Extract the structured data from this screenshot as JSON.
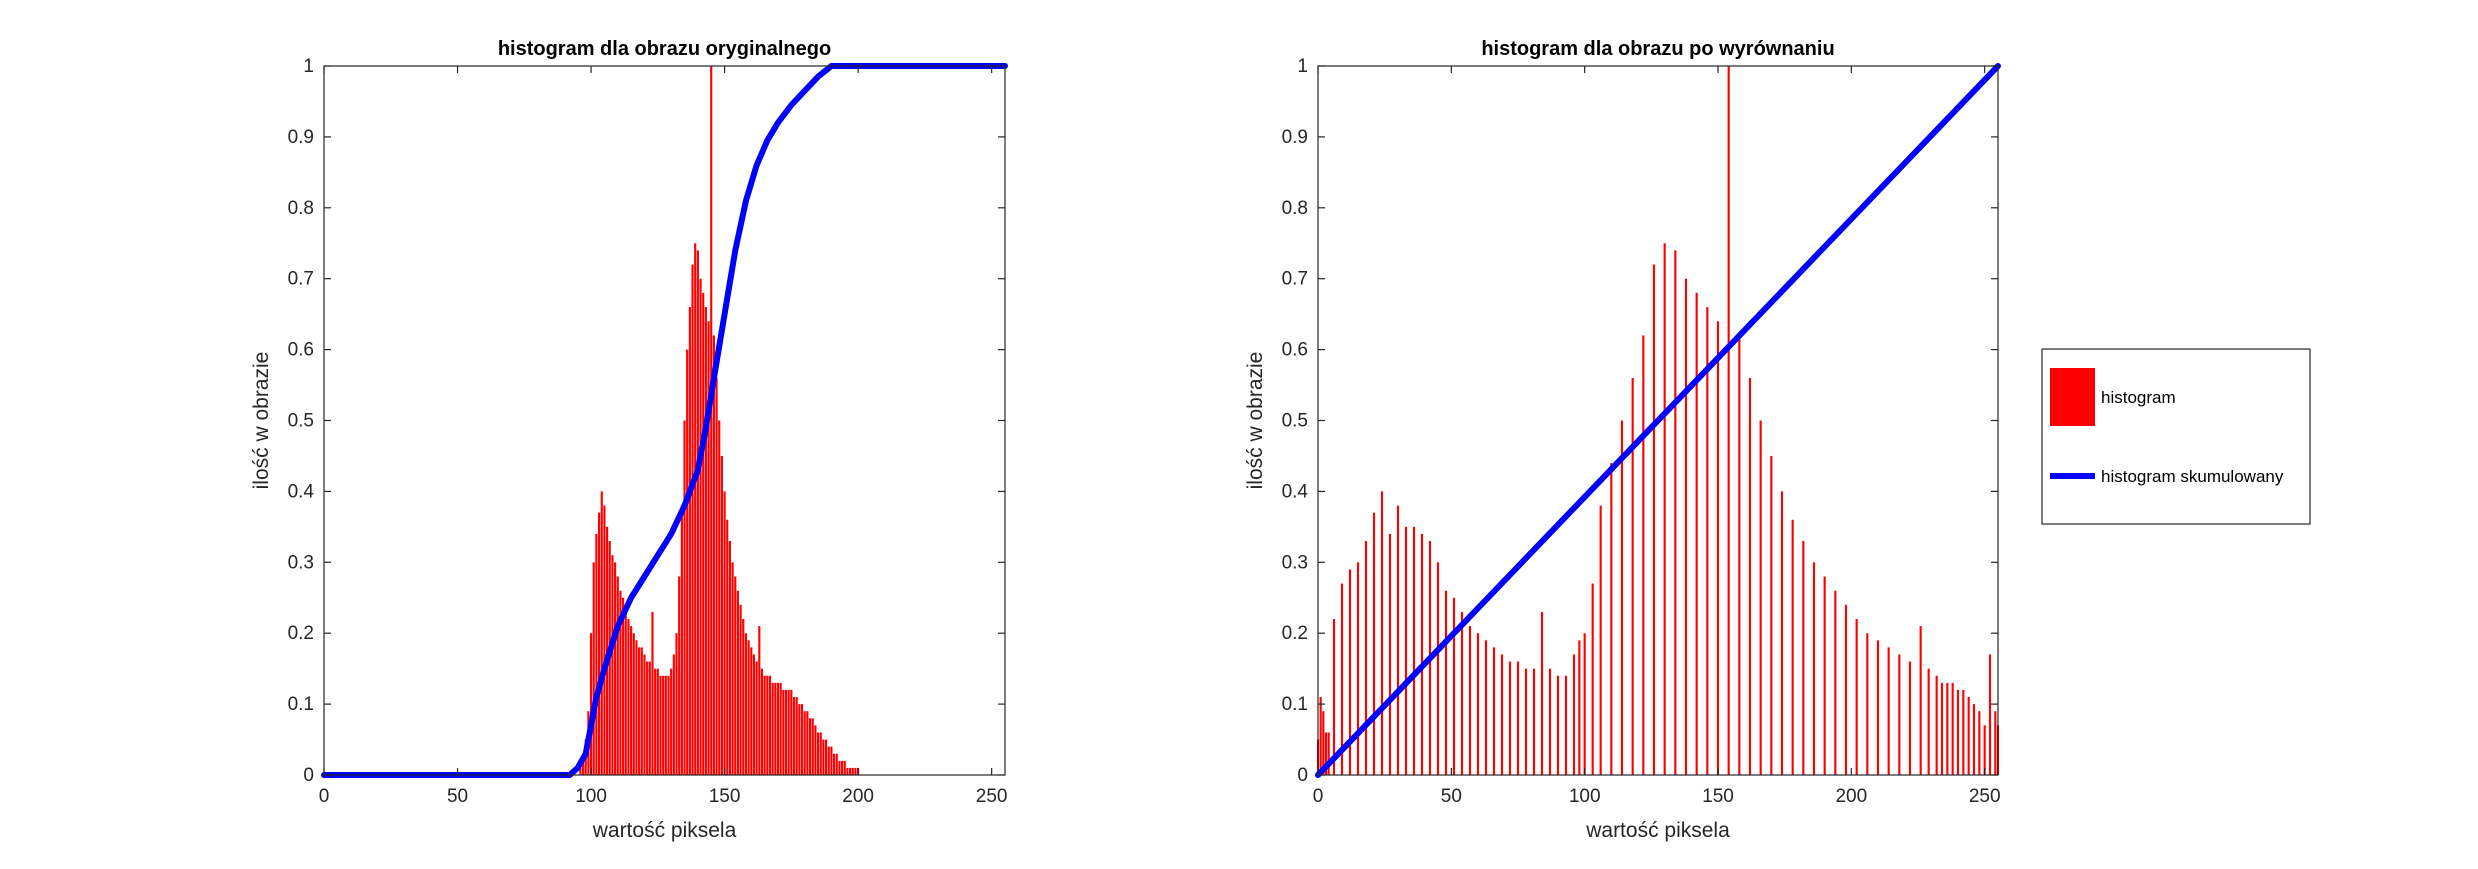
{
  "colors": {
    "histogram": "#ff0000",
    "cumulative": "#0000ff",
    "axis": "#262626"
  },
  "legend": {
    "placement": "right",
    "entries": [
      "histogram",
      "histogram skumulowany"
    ]
  },
  "chart_data": [
    {
      "type": "bar",
      "title": "histogram dla obrazu oryginalnego",
      "xlabel": "wartość piksela",
      "ylabel": "ilość w obrazie",
      "xlim": [
        0,
        255
      ],
      "ylim": [
        0,
        1
      ],
      "xticks": [
        "0",
        "50",
        "100",
        "150",
        "200",
        "250"
      ],
      "yticks": [
        "0",
        "0.1",
        "0.2",
        "0.3",
        "0.4",
        "0.5",
        "0.6",
        "0.7",
        "0.8",
        "0.9",
        "1"
      ],
      "grid": false,
      "series": [
        {
          "name": "histogram",
          "type": "bar",
          "x": [
            96,
            97,
            98,
            99,
            100,
            101,
            102,
            103,
            104,
            105,
            106,
            107,
            108,
            109,
            110,
            111,
            112,
            113,
            114,
            115,
            116,
            117,
            118,
            119,
            120,
            121,
            122,
            123,
            124,
            125,
            126,
            127,
            128,
            129,
            130,
            131,
            132,
            133,
            134,
            135,
            136,
            137,
            138,
            139,
            140,
            141,
            142,
            143,
            144,
            145,
            146,
            147,
            148,
            149,
            150,
            151,
            152,
            153,
            154,
            155,
            156,
            157,
            158,
            159,
            160,
            161,
            162,
            163,
            164,
            165,
            166,
            167,
            168,
            169,
            170,
            171,
            172,
            173,
            174,
            175,
            176,
            177,
            178,
            179,
            180,
            181,
            182,
            183,
            184,
            185,
            186,
            187,
            188,
            189,
            190,
            191,
            192,
            193,
            194,
            195,
            196,
            197,
            198,
            199,
            200
          ],
          "values": [
            0.01,
            0.02,
            0.05,
            0.09,
            0.2,
            0.3,
            0.34,
            0.37,
            0.4,
            0.38,
            0.35,
            0.33,
            0.31,
            0.3,
            0.28,
            0.26,
            0.25,
            0.24,
            0.22,
            0.21,
            0.2,
            0.19,
            0.18,
            0.18,
            0.17,
            0.16,
            0.16,
            0.23,
            0.15,
            0.15,
            0.14,
            0.14,
            0.14,
            0.14,
            0.15,
            0.17,
            0.2,
            0.28,
            0.38,
            0.5,
            0.6,
            0.66,
            0.72,
            0.75,
            0.74,
            0.7,
            0.68,
            0.66,
            0.64,
            1.0,
            0.62,
            0.56,
            0.5,
            0.45,
            0.4,
            0.36,
            0.33,
            0.3,
            0.28,
            0.26,
            0.24,
            0.22,
            0.2,
            0.19,
            0.18,
            0.17,
            0.16,
            0.21,
            0.15,
            0.14,
            0.14,
            0.14,
            0.13,
            0.13,
            0.13,
            0.13,
            0.12,
            0.12,
            0.12,
            0.12,
            0.11,
            0.11,
            0.1,
            0.1,
            0.09,
            0.09,
            0.08,
            0.08,
            0.07,
            0.06,
            0.06,
            0.05,
            0.05,
            0.04,
            0.04,
            0.03,
            0.03,
            0.02,
            0.02,
            0.02,
            0.01,
            0.01,
            0.01,
            0.01,
            0.01
          ]
        },
        {
          "name": "histogram skumulowany",
          "type": "line",
          "x": [
            0,
            92,
            95,
            98,
            100,
            102,
            105,
            110,
            115,
            120,
            125,
            130,
            135,
            140,
            143,
            146,
            150,
            154,
            158,
            162,
            166,
            170,
            175,
            180,
            185,
            190,
            195,
            200,
            255
          ],
          "values": [
            0,
            0,
            0.01,
            0.03,
            0.07,
            0.11,
            0.15,
            0.21,
            0.25,
            0.28,
            0.31,
            0.34,
            0.38,
            0.43,
            0.49,
            0.56,
            0.65,
            0.74,
            0.81,
            0.86,
            0.895,
            0.92,
            0.945,
            0.965,
            0.985,
            1.0,
            1.0,
            1.0,
            1.0
          ]
        }
      ]
    },
    {
      "type": "bar",
      "title": "histogram dla obrazu po wyrównaniu",
      "xlabel": "wartość piksela",
      "ylabel": "ilość w obrazie",
      "xlim": [
        0,
        255
      ],
      "ylim": [
        0,
        1
      ],
      "xticks": [
        "0",
        "50",
        "100",
        "150",
        "200",
        "250"
      ],
      "yticks": [
        "0",
        "0.1",
        "0.2",
        "0.3",
        "0.4",
        "0.5",
        "0.6",
        "0.7",
        "0.8",
        "0.9",
        "1"
      ],
      "grid": false,
      "series": [
        {
          "name": "histogram",
          "type": "bar",
          "x": [
            0,
            1,
            2,
            3,
            4,
            6,
            9,
            12,
            15,
            18,
            21,
            24,
            27,
            30,
            33,
            36,
            39,
            42,
            45,
            48,
            51,
            54,
            57,
            60,
            63,
            66,
            69,
            72,
            75,
            78,
            81,
            84,
            87,
            90,
            93,
            96,
            98,
            100,
            103,
            106,
            110,
            114,
            118,
            122,
            126,
            130,
            134,
            138,
            142,
            146,
            150,
            154,
            158,
            162,
            166,
            170,
            174,
            178,
            182,
            186,
            190,
            194,
            198,
            202,
            206,
            210,
            214,
            218,
            222,
            226,
            229,
            232,
            234,
            236,
            238,
            240,
            242,
            244,
            246,
            248,
            250,
            252,
            254,
            255
          ],
          "values": [
            0.05,
            0.11,
            0.09,
            0.06,
            0.06,
            0.22,
            0.27,
            0.29,
            0.3,
            0.33,
            0.37,
            0.4,
            0.34,
            0.38,
            0.35,
            0.35,
            0.34,
            0.33,
            0.3,
            0.26,
            0.25,
            0.23,
            0.21,
            0.2,
            0.19,
            0.18,
            0.17,
            0.16,
            0.16,
            0.15,
            0.15,
            0.23,
            0.15,
            0.14,
            0.14,
            0.17,
            0.19,
            0.2,
            0.27,
            0.38,
            0.44,
            0.5,
            0.56,
            0.62,
            0.72,
            0.75,
            0.74,
            0.7,
            0.68,
            0.66,
            0.64,
            1.0,
            0.62,
            0.56,
            0.5,
            0.45,
            0.4,
            0.36,
            0.33,
            0.3,
            0.28,
            0.26,
            0.24,
            0.22,
            0.2,
            0.19,
            0.18,
            0.17,
            0.16,
            0.21,
            0.15,
            0.14,
            0.13,
            0.13,
            0.13,
            0.12,
            0.12,
            0.11,
            0.1,
            0.09,
            0.07,
            0.17,
            0.09,
            0.07
          ]
        },
        {
          "name": "histogram skumulowany",
          "type": "line",
          "x": [
            0,
            255
          ],
          "values": [
            0,
            1.0
          ]
        }
      ]
    }
  ]
}
